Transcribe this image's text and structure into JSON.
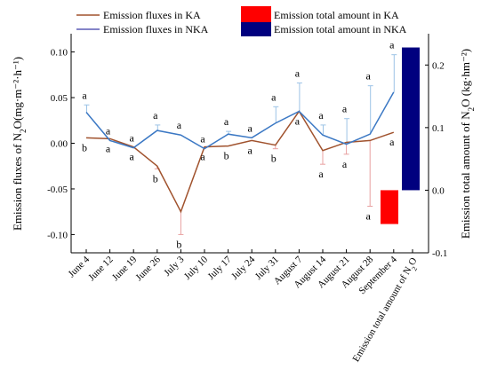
{
  "chart_data": {
    "type": "line",
    "categories": [
      "June 4",
      "June 12",
      "June 19",
      "June 26",
      "July 3",
      "July 10",
      "July 17",
      "July 24",
      "July 31",
      "August 7",
      "August 14",
      "August 21",
      "August 28",
      "September 4"
    ],
    "series": [
      {
        "name": "Emission fluxes in KA",
        "color": "#a0522d",
        "values": [
          0.006,
          0.005,
          -0.004,
          -0.025,
          -0.075,
          -0.004,
          -0.003,
          0.003,
          -0.002,
          0.035,
          -0.008,
          0.001,
          0.003,
          0.012
        ],
        "err_low": [
          0.0,
          0.0,
          0.0,
          0.003,
          0.025,
          0.0,
          0.0,
          0.0,
          0.004,
          0.0,
          0.015,
          0.013,
          0.072,
          0.0
        ],
        "err_high": [
          0.0,
          0.0,
          0.0,
          0.0,
          0.0,
          0.0,
          0.0,
          0.0,
          0.0,
          0.0,
          0.0,
          0.0,
          0.0,
          0.0
        ],
        "labels": [
          "b",
          "a",
          "a",
          "b",
          "b",
          "a",
          "b",
          "a",
          "b",
          "a",
          "a",
          "a",
          "a",
          "a"
        ],
        "label_pos": [
          "below",
          "below",
          "below",
          "below",
          "below",
          "below",
          "below",
          "below",
          "below",
          "below",
          "below",
          "below",
          "below",
          "below"
        ]
      },
      {
        "name": "Emission fluxes in NKA",
        "color": "#5b5bb5",
        "values": [
          0.034,
          0.003,
          -0.005,
          0.014,
          0.009,
          -0.006,
          0.01,
          0.006,
          0.022,
          0.035,
          0.009,
          -0.001,
          0.01,
          0.056
        ],
        "err_low": [
          0.0,
          0.0,
          0.0,
          0.0,
          0.0,
          0.0,
          0.0,
          0.0,
          0.0,
          0.0,
          0.0,
          0.0,
          0.0,
          0.0
        ],
        "err_high": [
          0.008,
          0.0,
          0.0,
          0.006,
          0.0,
          0.0,
          0.003,
          0.0,
          0.018,
          0.031,
          0.011,
          0.028,
          0.053,
          0.041
        ],
        "labels": [
          "a",
          "a",
          "a",
          "a",
          "a",
          "a",
          "a",
          "a",
          "a",
          "a",
          "a",
          "a",
          "a",
          "a"
        ],
        "label_pos": [
          "above",
          "above",
          "above",
          "above",
          "above",
          "above",
          "above",
          "above",
          "above",
          "above",
          "above",
          "above",
          "above",
          "above"
        ]
      }
    ],
    "totals": {
      "category": "Emission total amount of N2O",
      "bars": [
        {
          "name": "Emission total amount in KA",
          "color": "#ff0000",
          "value": -0.054
        },
        {
          "name": "Emission total amount in NKA",
          "color": "#00007f",
          "value": 0.228
        }
      ]
    },
    "ylim_left": [
      -0.12,
      0.12
    ],
    "yticks_left": [
      "-0.10",
      "-0.05",
      "0.00",
      "0.05",
      "0.10"
    ],
    "ytick_values_left": [
      -0.1,
      -0.05,
      0.0,
      0.05,
      0.1
    ],
    "ylim_right": [
      -0.1,
      0.25
    ],
    "yticks_right": [
      "-0.1",
      "0.0",
      "0.1",
      "0.2"
    ],
    "ytick_values_right": [
      -0.1,
      0.0,
      0.1,
      0.2
    ],
    "ylabel_left": "Emission fluxes of N2O(mg·m⁻²·h⁻¹)",
    "ylabel_right": "Emission total amount of  N2O  (kg·hm⁻²)",
    "legend_placement": "top",
    "grid": false
  }
}
